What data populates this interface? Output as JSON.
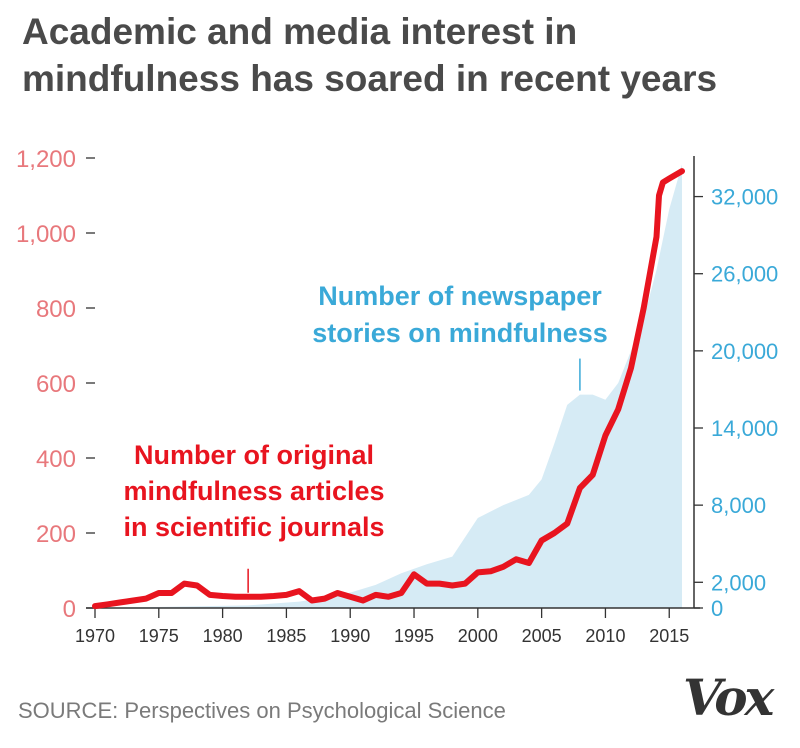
{
  "title": "Academic and media interest in mindfulness has soared in recent years",
  "source": "SOURCE: Perspectives on Psychological Science",
  "logo": "Vox",
  "colors": {
    "articles_line": "#e8141f",
    "articles_axis": "#e8787c",
    "stories_fill": "#d6ebf5",
    "stories_text": "#3aa9d8",
    "axis": "#333333"
  },
  "chart_data": {
    "type": "line",
    "title": "Academic and media interest in mindfulness has soared in recent years",
    "xlim": [
      1970,
      2016
    ],
    "x_ticks": [
      1970,
      1975,
      1980,
      1985,
      1990,
      1995,
      2000,
      2005,
      2010,
      2015
    ],
    "left_axis": {
      "ylim": [
        0,
        1200
      ],
      "ticks": [
        0,
        200,
        400,
        600,
        800,
        1000,
        1200
      ],
      "tick_labels": [
        "0",
        "200",
        "400",
        "600",
        "800",
        "1,000",
        "1,200"
      ]
    },
    "right_axis": {
      "ylim": [
        0,
        35000
      ],
      "ticks": [
        0,
        2000,
        8000,
        14000,
        20000,
        26000,
        32000
      ],
      "tick_labels": [
        "0",
        "2,000",
        "8,000",
        "14,000",
        "20,000",
        "26,000",
        "32,000"
      ]
    },
    "series": [
      {
        "name": "Number of original mindfulness articles in scientific journals",
        "axis": "left",
        "style": "line",
        "x": [
          1970,
          1971,
          1972,
          1973,
          1974,
          1975,
          1976,
          1977,
          1978,
          1979,
          1980,
          1981,
          1982,
          1983,
          1984,
          1985,
          1986,
          1987,
          1988,
          1989,
          1990,
          1991,
          1992,
          1993,
          1994,
          1995,
          1996,
          1997,
          1998,
          1999,
          2000,
          2001,
          2002,
          2003,
          2004,
          2005,
          2006,
          2007,
          2008,
          2009,
          2010,
          2011,
          2012,
          2013,
          2014,
          2014.2,
          2014.5,
          2015,
          2016
        ],
        "values": [
          5,
          10,
          15,
          20,
          25,
          40,
          40,
          65,
          60,
          35,
          32,
          30,
          30,
          30,
          32,
          35,
          45,
          20,
          25,
          40,
          30,
          20,
          35,
          30,
          40,
          90,
          65,
          65,
          60,
          65,
          95,
          98,
          110,
          130,
          120,
          180,
          200,
          225,
          320,
          355,
          460,
          530,
          640,
          800,
          990,
          1100,
          1135,
          1145,
          1165
        ]
      },
      {
        "name": "Number of newspaper stories on mindfulness",
        "axis": "right",
        "style": "area",
        "x": [
          1970,
          1982,
          1986,
          1988,
          1990,
          1992,
          1994,
          1996,
          1998,
          2000,
          2002,
          2004,
          2005,
          2006,
          2007,
          2008,
          2009,
          2010,
          2011,
          2012,
          2013,
          2014,
          2015,
          2016
        ],
        "values": [
          0,
          200,
          500,
          800,
          1200,
          1800,
          2700,
          3400,
          4000,
          7000,
          8000,
          8800,
          10000,
          12800,
          15800,
          16600,
          16600,
          16200,
          17500,
          20000,
          22500,
          26300,
          31000,
          34500
        ]
      }
    ],
    "annotations": [
      {
        "series": 0,
        "lines": [
          "Number of original",
          "mindfulness articles",
          "in scientific journals"
        ],
        "x": 1982,
        "y": 30
      },
      {
        "series": 1,
        "lines": [
          "Number of newspaper",
          "stories on mindfulness"
        ],
        "x": 2008,
        "y": 16600
      }
    ]
  }
}
